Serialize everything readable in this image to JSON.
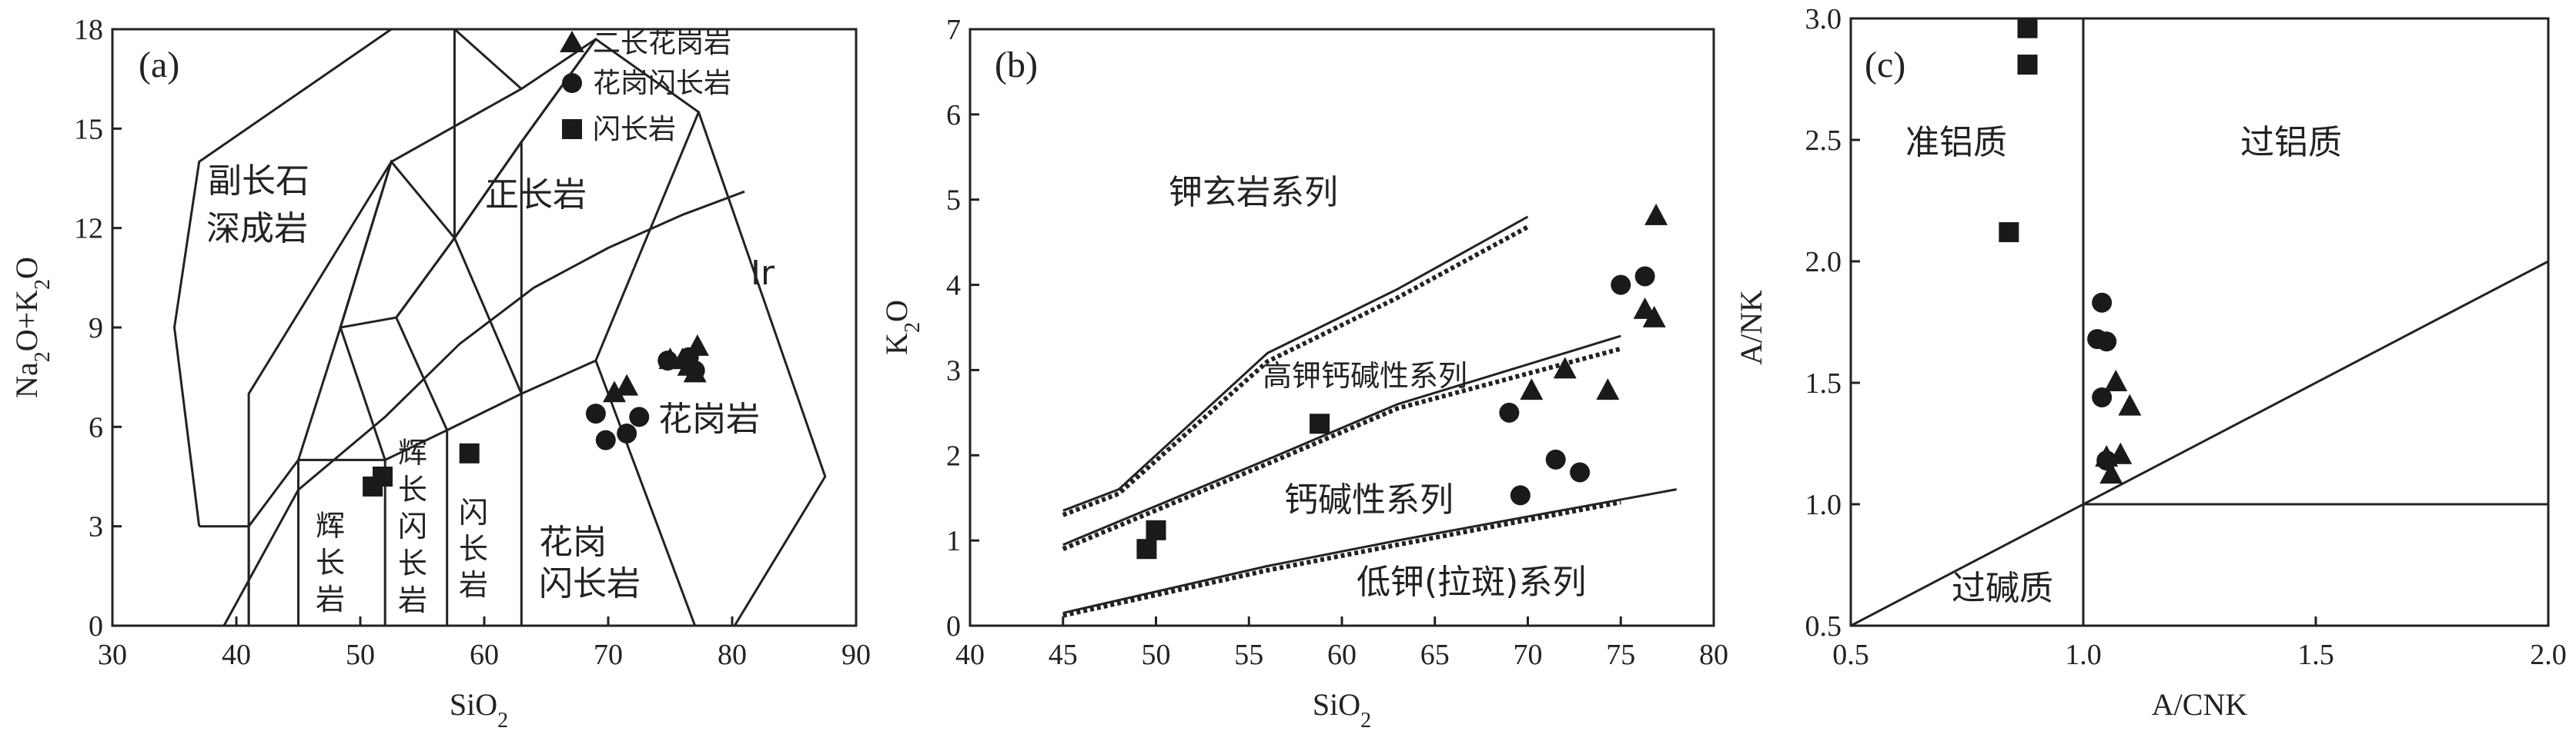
{
  "chart_data": [
    {
      "type": "scatter",
      "panel": "(a)",
      "xlabel": "SiO2",
      "ylabel": "Na2O+K2O",
      "xlim": [
        30,
        90
      ],
      "ylim": [
        0,
        18
      ],
      "xticks": [
        "30",
        "40",
        "50",
        "60",
        "70",
        "80",
        "90"
      ],
      "yticks": [
        "0",
        "3",
        "6",
        "9",
        "12",
        "15",
        "18"
      ],
      "field_labels": [
        "副长石",
        "深成岩",
        "正长岩",
        "Ir",
        "花岗岩",
        "辉",
        "长",
        "岩",
        "辉",
        "长",
        "闪",
        "长",
        "岩",
        "闪",
        "长",
        "岩",
        "花岗",
        "闪长岩"
      ],
      "legend": [
        {
          "name": "二长花岗岩",
          "marker": "triangle"
        },
        {
          "name": "花岗闪长岩",
          "marker": "circle"
        },
        {
          "name": "闪长岩",
          "marker": "square"
        }
      ],
      "series": [
        {
          "name": "二长花岗岩",
          "marker": "triangle",
          "points": [
            [
              70.5,
              7.0
            ],
            [
              71.5,
              7.2
            ],
            [
              75.0,
              8.0
            ],
            [
              76.0,
              8.0
            ],
            [
              76.5,
              7.8
            ],
            [
              77.0,
              7.6
            ],
            [
              77.2,
              8.4
            ]
          ]
        },
        {
          "name": "花岗闪长岩",
          "marker": "circle",
          "points": [
            [
              69.0,
              6.4
            ],
            [
              69.8,
              5.6
            ],
            [
              71.5,
              5.8
            ],
            [
              72.5,
              6.3
            ],
            [
              74.8,
              8.0
            ],
            [
              76.5,
              8.1
            ],
            [
              77.0,
              7.7
            ]
          ]
        },
        {
          "name": "闪长岩",
          "marker": "square",
          "points": [
            [
              51.0,
              4.2
            ],
            [
              51.8,
              4.5
            ],
            [
              58.8,
              5.2
            ]
          ]
        }
      ]
    },
    {
      "type": "scatter",
      "panel": "(b)",
      "xlabel": "SiO2",
      "ylabel": "K2O",
      "xlim": [
        40,
        80
      ],
      "ylim": [
        0,
        7
      ],
      "xticks": [
        "40",
        "45",
        "50",
        "55",
        "60",
        "65",
        "70",
        "75",
        "80"
      ],
      "yticks": [
        "0",
        "1",
        "2",
        "3",
        "4",
        "5",
        "6",
        "7"
      ],
      "field_labels": [
        "钾玄岩系列",
        "高钾钙碱性系列",
        "钙碱性系列",
        "低钾(拉斑)系列"
      ],
      "series": [
        {
          "name": "二长花岗岩",
          "marker": "triangle",
          "points": [
            [
              70.2,
              2.75
            ],
            [
              72.0,
              3.0
            ],
            [
              74.3,
              2.75
            ],
            [
              76.3,
              3.7
            ],
            [
              76.8,
              3.6
            ],
            [
              76.9,
              4.8
            ]
          ]
        },
        {
          "name": "花岗闪长岩",
          "marker": "circle",
          "points": [
            [
              69.0,
              2.5
            ],
            [
              69.6,
              1.53
            ],
            [
              71.5,
              1.95
            ],
            [
              72.8,
              1.8
            ],
            [
              75.0,
              4.0
            ],
            [
              76.3,
              4.1
            ]
          ]
        },
        {
          "name": "闪长岩",
          "marker": "square",
          "points": [
            [
              49.5,
              0.9
            ],
            [
              50.0,
              1.12
            ],
            [
              58.8,
              2.37
            ]
          ]
        }
      ]
    },
    {
      "type": "scatter",
      "panel": "(c)",
      "xlabel": "A/CNK",
      "ylabel": "A/NK",
      "xlim": [
        0.5,
        2.0
      ],
      "ylim": [
        0.5,
        3.0
      ],
      "xticks": [
        "0.5",
        "1.0",
        "1.5",
        "2.0"
      ],
      "yticks": [
        "0.5",
        "1.0",
        "1.5",
        "2.0",
        "2.5",
        "3.0"
      ],
      "field_labels": [
        "准铝质",
        "过铝质",
        "过碱质"
      ],
      "series": [
        {
          "name": "二长花岗岩",
          "marker": "triangle",
          "points": [
            [
              1.05,
              1.19
            ],
            [
              1.06,
              1.12
            ],
            [
              1.07,
              1.5
            ],
            [
              1.08,
              1.2
            ],
            [
              1.1,
              1.4
            ]
          ]
        },
        {
          "name": "花岗闪长岩",
          "marker": "circle",
          "points": [
            [
              1.03,
              1.68
            ],
            [
              1.04,
              1.83
            ],
            [
              1.05,
              1.67
            ],
            [
              1.04,
              1.44
            ],
            [
              1.05,
              1.18
            ]
          ]
        },
        {
          "name": "闪长岩",
          "marker": "square",
          "points": [
            [
              0.84,
              2.12
            ],
            [
              0.88,
              2.81
            ],
            [
              0.88,
              2.96
            ]
          ]
        }
      ]
    }
  ]
}
